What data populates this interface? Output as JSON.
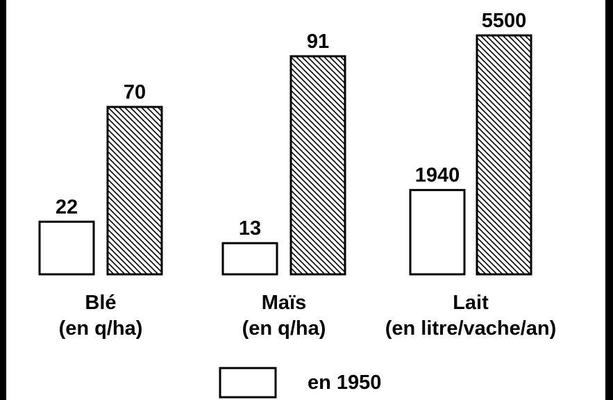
{
  "chart_data": {
    "type": "bar",
    "title": "",
    "xlabel": "",
    "ylabel": "",
    "grid": false,
    "legend_position": "bottom",
    "colors": {
      "background": "#ffffff",
      "frame": "#000000",
      "stroke": "#000000"
    },
    "groups": [
      {
        "name_line1": "Blé",
        "name_line2": "(en q/ha)",
        "values": [
          22,
          70
        ],
        "value_labels": [
          "22",
          "70"
        ]
      },
      {
        "name_line1": "Maïs",
        "name_line2": "(en q/ha)",
        "values": [
          13,
          91
        ],
        "value_labels": [
          "13",
          "91"
        ]
      },
      {
        "name_line1": "Lait",
        "name_line2": "(en litre/vache/an)",
        "values": [
          1940,
          5500
        ],
        "value_labels": [
          "1940",
          "5500"
        ]
      }
    ],
    "series": [
      {
        "name": "en 1950",
        "fill": "none"
      },
      {
        "name": "",
        "fill": "hatched"
      }
    ],
    "legend": [
      {
        "label": "en 1950",
        "fill": "none"
      }
    ]
  }
}
